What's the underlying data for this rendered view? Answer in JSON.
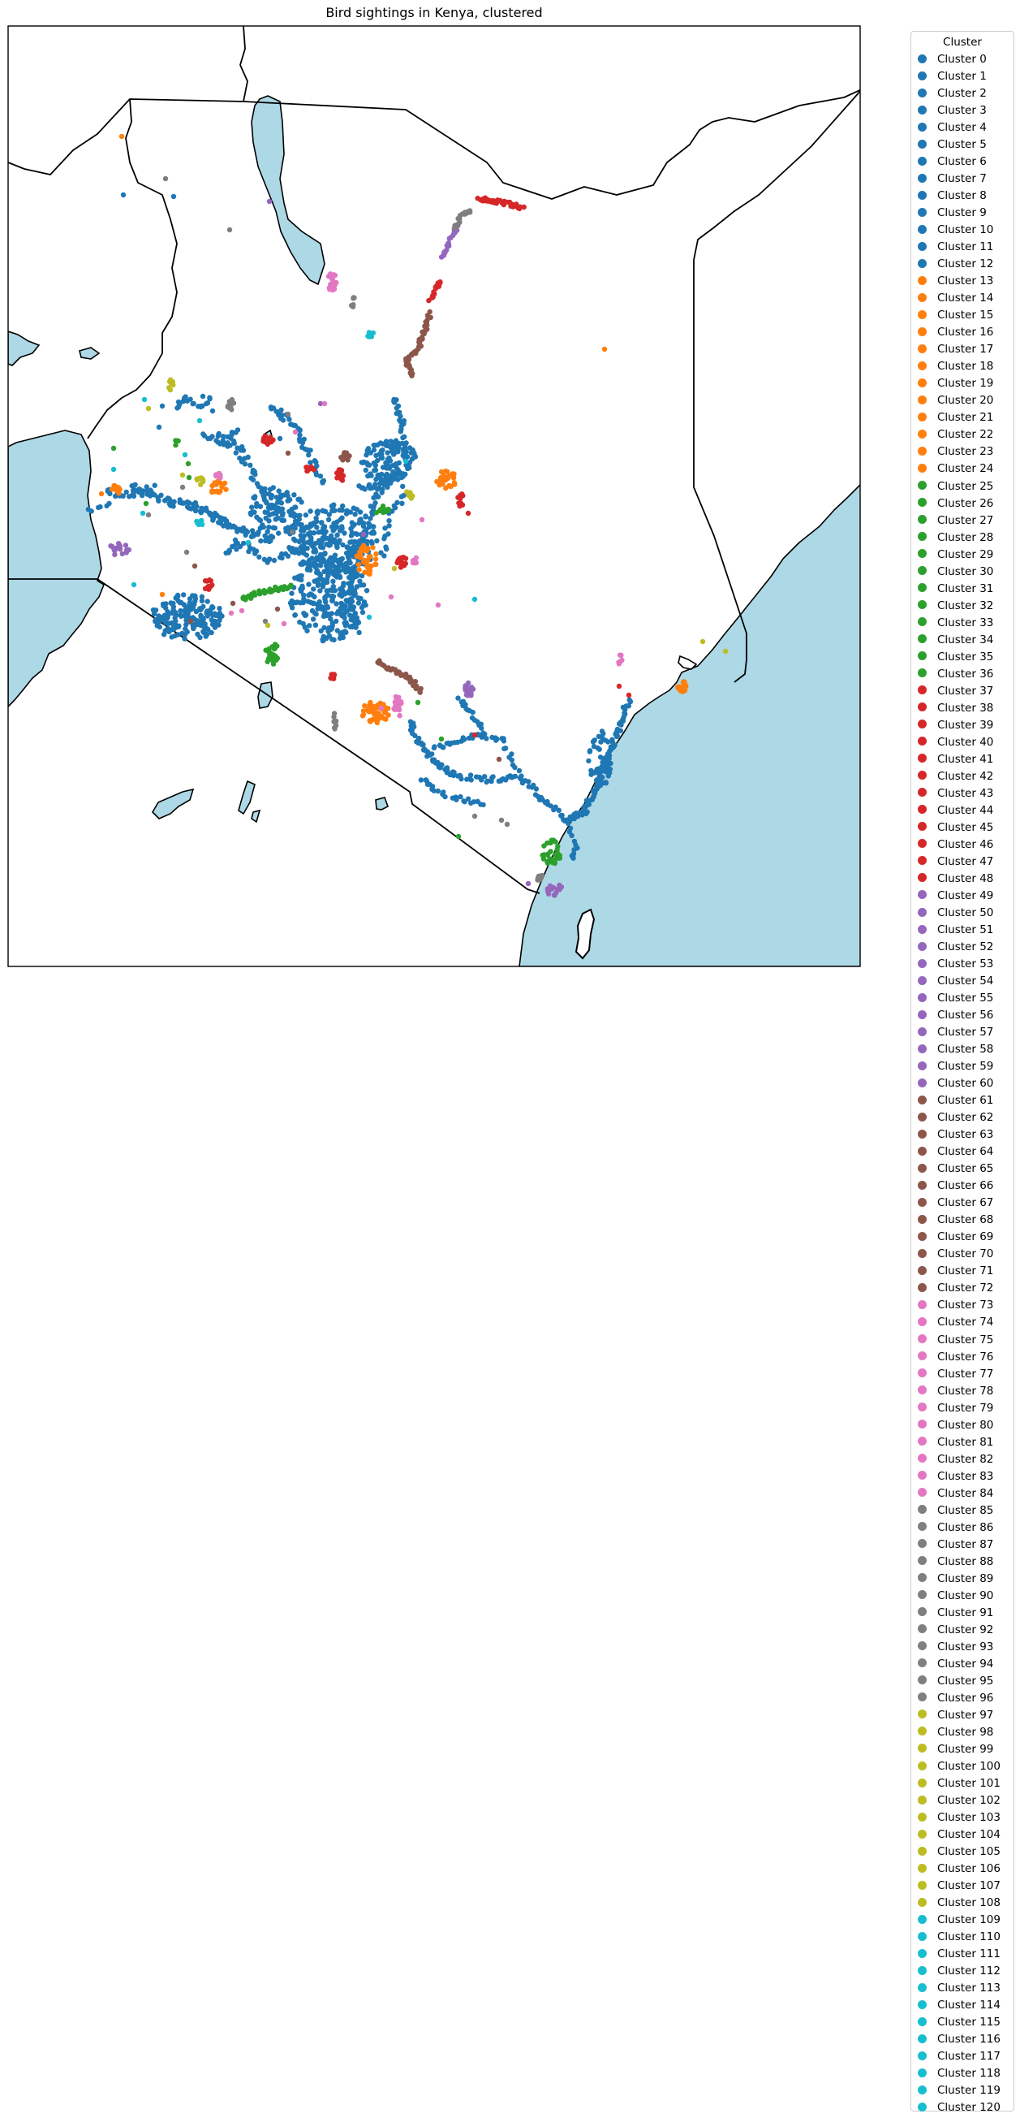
{
  "chart_data": {
    "type": "scatter",
    "title": "Bird sightings in Kenya, clustered",
    "legend_title": "Cluster",
    "legend_position": "outside-right",
    "grid": false,
    "colors": {
      "water": "#add8e6",
      "land": "#ffffff",
      "border": "#000000",
      "palette": [
        "#1f77b4",
        "#ff7f0e",
        "#2ca02c",
        "#d62728",
        "#9467bd",
        "#8c564b",
        "#e377c2",
        "#7f7f7f",
        "#bcbd22",
        "#17becf"
      ]
    },
    "cluster_groups": [
      {
        "color": "#1f77b4",
        "first": 0,
        "last": 12
      },
      {
        "color": "#ff7f0e",
        "first": 13,
        "last": 24
      },
      {
        "color": "#2ca02c",
        "first": 25,
        "last": 36
      },
      {
        "color": "#d62728",
        "first": 37,
        "last": 48
      },
      {
        "color": "#9467bd",
        "first": 49,
        "last": 60
      },
      {
        "color": "#8c564b",
        "first": 61,
        "last": 72
      },
      {
        "color": "#e377c2",
        "first": 73,
        "last": 84
      },
      {
        "color": "#7f7f7f",
        "first": 85,
        "last": 96
      },
      {
        "color": "#bcbd22",
        "first": 97,
        "last": 108
      },
      {
        "color": "#17becf",
        "first": 109,
        "last": 120
      }
    ],
    "legend_entries": [
      "Cluster 0",
      "Cluster 1",
      "Cluster 2",
      "Cluster 3",
      "Cluster 4",
      "Cluster 5",
      "Cluster 6",
      "Cluster 7",
      "Cluster 8",
      "Cluster 9",
      "Cluster 10",
      "Cluster 11",
      "Cluster 12",
      "Cluster 13",
      "Cluster 14",
      "Cluster 15",
      "Cluster 16",
      "Cluster 17",
      "Cluster 18",
      "Cluster 19",
      "Cluster 20",
      "Cluster 21",
      "Cluster 22",
      "Cluster 23",
      "Cluster 24",
      "Cluster 25",
      "Cluster 26",
      "Cluster 27",
      "Cluster 28",
      "Cluster 29",
      "Cluster 30",
      "Cluster 31",
      "Cluster 32",
      "Cluster 33",
      "Cluster 34",
      "Cluster 35",
      "Cluster 36",
      "Cluster 37",
      "Cluster 38",
      "Cluster 39",
      "Cluster 40",
      "Cluster 41",
      "Cluster 42",
      "Cluster 43",
      "Cluster 44",
      "Cluster 45",
      "Cluster 46",
      "Cluster 47",
      "Cluster 48",
      "Cluster 49",
      "Cluster 50",
      "Cluster 51",
      "Cluster 52",
      "Cluster 53",
      "Cluster 54",
      "Cluster 55",
      "Cluster 56",
      "Cluster 57",
      "Cluster 58",
      "Cluster 59",
      "Cluster 60",
      "Cluster 61",
      "Cluster 62",
      "Cluster 63",
      "Cluster 64",
      "Cluster 65",
      "Cluster 66",
      "Cluster 67",
      "Cluster 68",
      "Cluster 69",
      "Cluster 70",
      "Cluster 71",
      "Cluster 72",
      "Cluster 73",
      "Cluster 74",
      "Cluster 75",
      "Cluster 76",
      "Cluster 77",
      "Cluster 78",
      "Cluster 79",
      "Cluster 80",
      "Cluster 81",
      "Cluster 82",
      "Cluster 83",
      "Cluster 84",
      "Cluster 85",
      "Cluster 86",
      "Cluster 87",
      "Cluster 88",
      "Cluster 89",
      "Cluster 90",
      "Cluster 91",
      "Cluster 92",
      "Cluster 93",
      "Cluster 94",
      "Cluster 95",
      "Cluster 96",
      "Cluster 97",
      "Cluster 98",
      "Cluster 99",
      "Cluster 100",
      "Cluster 101",
      "Cluster 102",
      "Cluster 103",
      "Cluster 104",
      "Cluster 105",
      "Cluster 106",
      "Cluster 107",
      "Cluster 108",
      "Cluster 109",
      "Cluster 110",
      "Cluster 111",
      "Cluster 112",
      "Cluster 113",
      "Cluster 114",
      "Cluster 115",
      "Cluster 116",
      "Cluster 117",
      "Cluster 118",
      "Cluster 119",
      "Cluster 120"
    ]
  }
}
